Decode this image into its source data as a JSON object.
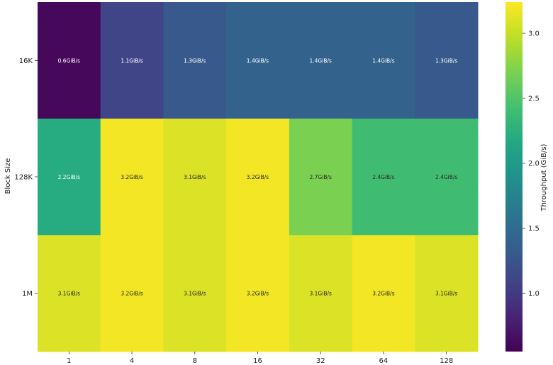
{
  "chart_data": {
    "type": "heatmap",
    "title": "",
    "xlabel": "",
    "ylabel": "Block Size",
    "x_categories": [
      "1",
      "4",
      "8",
      "16",
      "32",
      "64",
      "128"
    ],
    "y_categories": [
      "16K",
      "128K",
      "1M"
    ],
    "values": [
      [
        0.6,
        1.1,
        1.3,
        1.4,
        1.4,
        1.4,
        1.3
      ],
      [
        2.2,
        3.2,
        3.1,
        3.2,
        2.7,
        2.4,
        2.4
      ],
      [
        3.1,
        3.2,
        3.1,
        3.2,
        3.1,
        3.2,
        3.1
      ]
    ],
    "cell_labels": [
      [
        "0.6GiB/s",
        "1.1GiB/s",
        "1.3GiB/s",
        "1.4GiB/s",
        "1.4GiB/s",
        "1.4GiB/s",
        "1.3GiB/s"
      ],
      [
        "2.2GiB/s",
        "3.2GiB/s",
        "3.1GiB/s",
        "3.2GiB/s",
        "2.7GiB/s",
        "2.4GiB/s",
        "2.4GiB/s"
      ],
      [
        "3.1GiB/s",
        "3.2GiB/s",
        "3.1GiB/s",
        "3.2GiB/s",
        "3.1GiB/s",
        "3.2GiB/s",
        "3.1GiB/s"
      ]
    ],
    "colormap": "viridis",
    "colorbar": {
      "label": "Throughput (GiB/s)",
      "range": [
        0.55,
        3.24
      ],
      "ticks": [
        "1.0",
        "1.5",
        "2.0",
        "2.5",
        "3.0"
      ]
    },
    "grid": false,
    "legend": "colorbar-right"
  }
}
